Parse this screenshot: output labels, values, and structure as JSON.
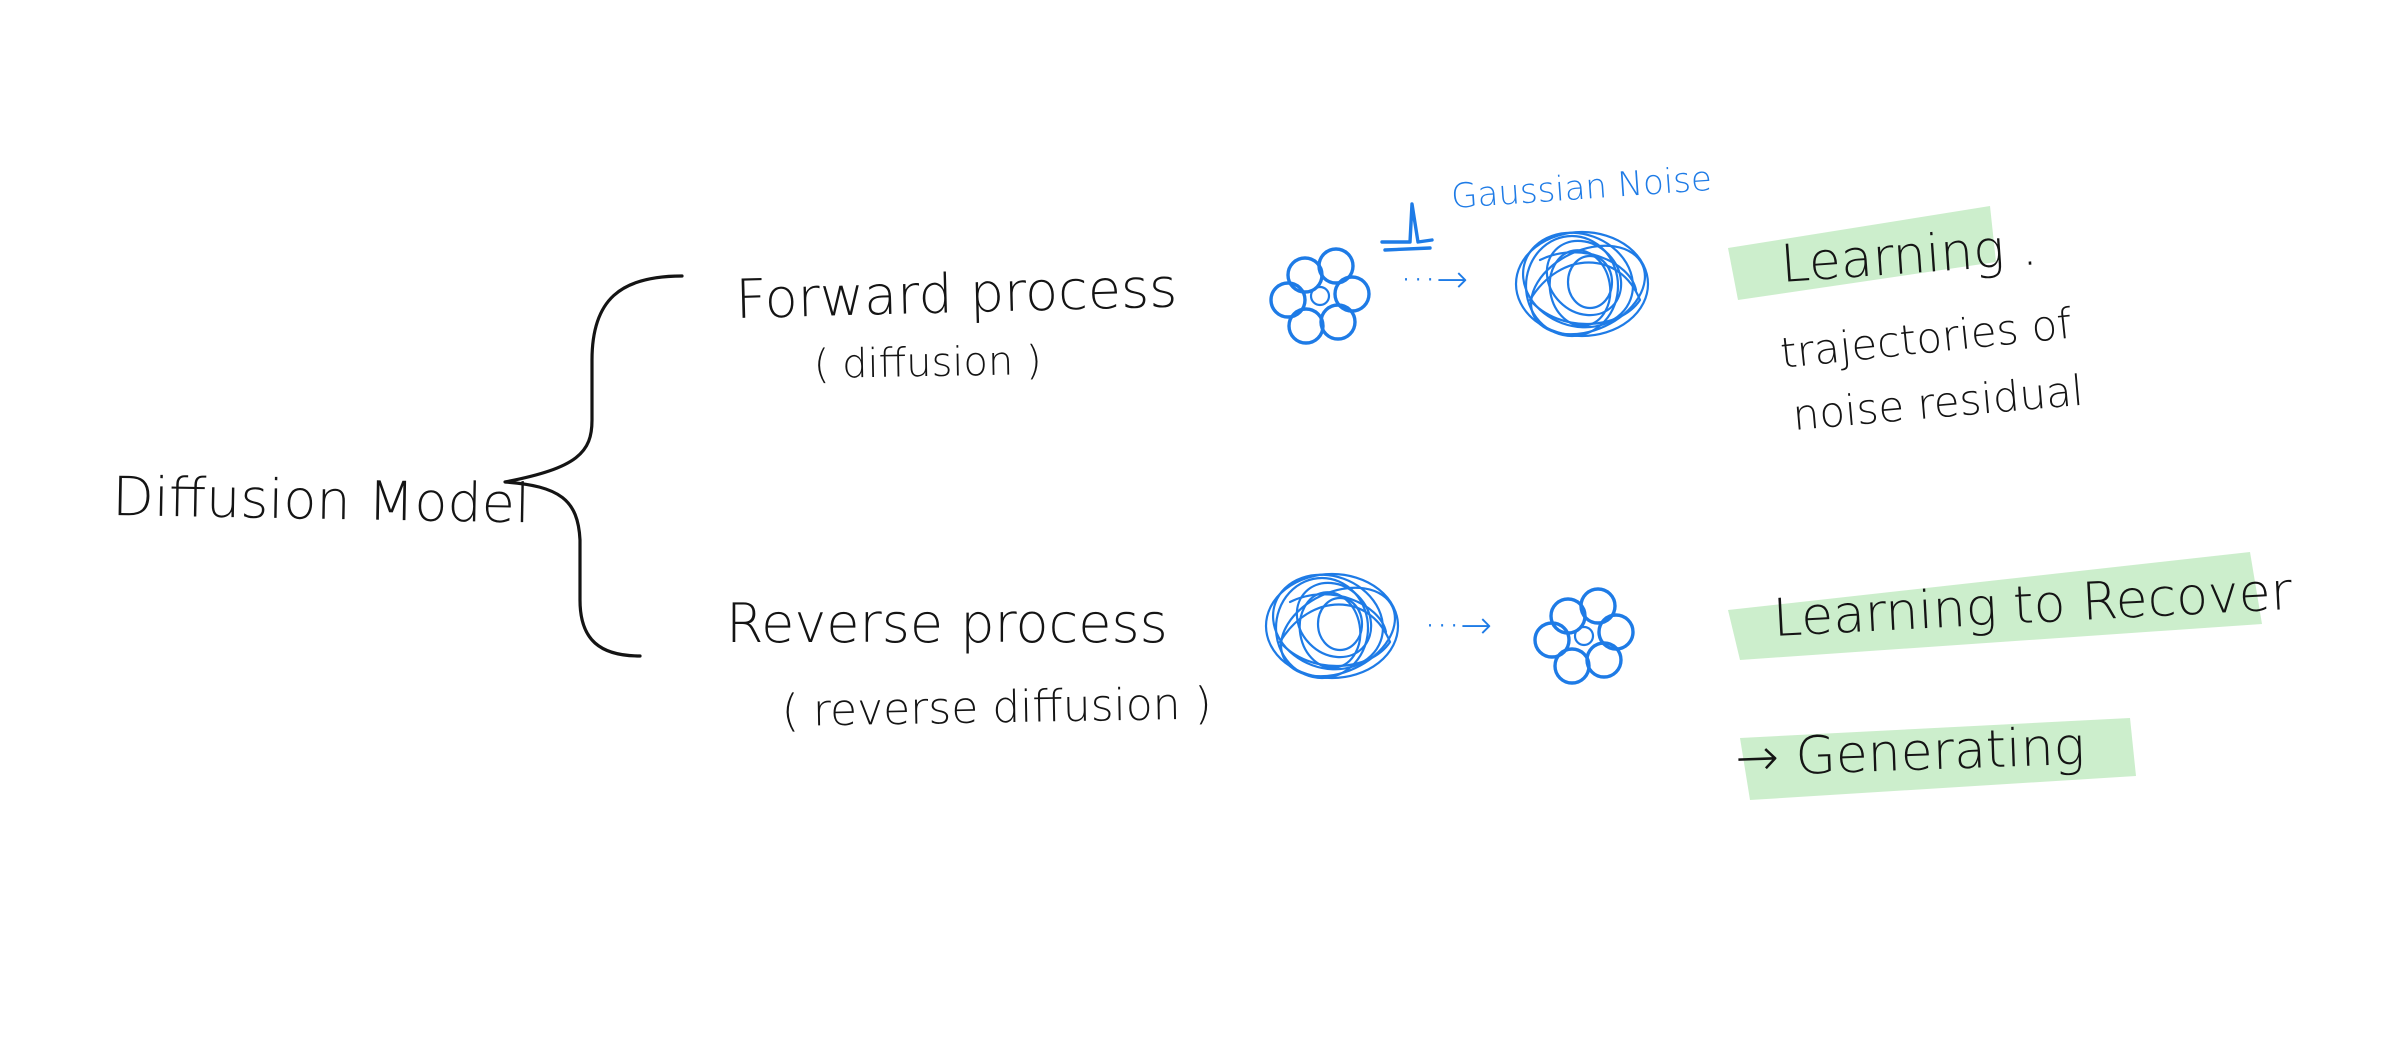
{
  "root": {
    "label": "Diffusion Model"
  },
  "forward": {
    "title": "Forward process",
    "subtitle": "( diffusion )",
    "noise_label": "Gaussian Noise",
    "arrow_label": "···→",
    "note_heading": "Learning .",
    "note_line1": "trajectories of",
    "note_line2": "noise residual"
  },
  "reverse": {
    "title": "Reverse process",
    "subtitle": "( reverse diffusion )",
    "arrow_label": "···→",
    "note_heading": "Learning to Recover",
    "note_result": "→ Generating"
  },
  "colors": {
    "ink": "#141414",
    "blue": "#1e7be6",
    "highlight": "#8fd98f"
  }
}
